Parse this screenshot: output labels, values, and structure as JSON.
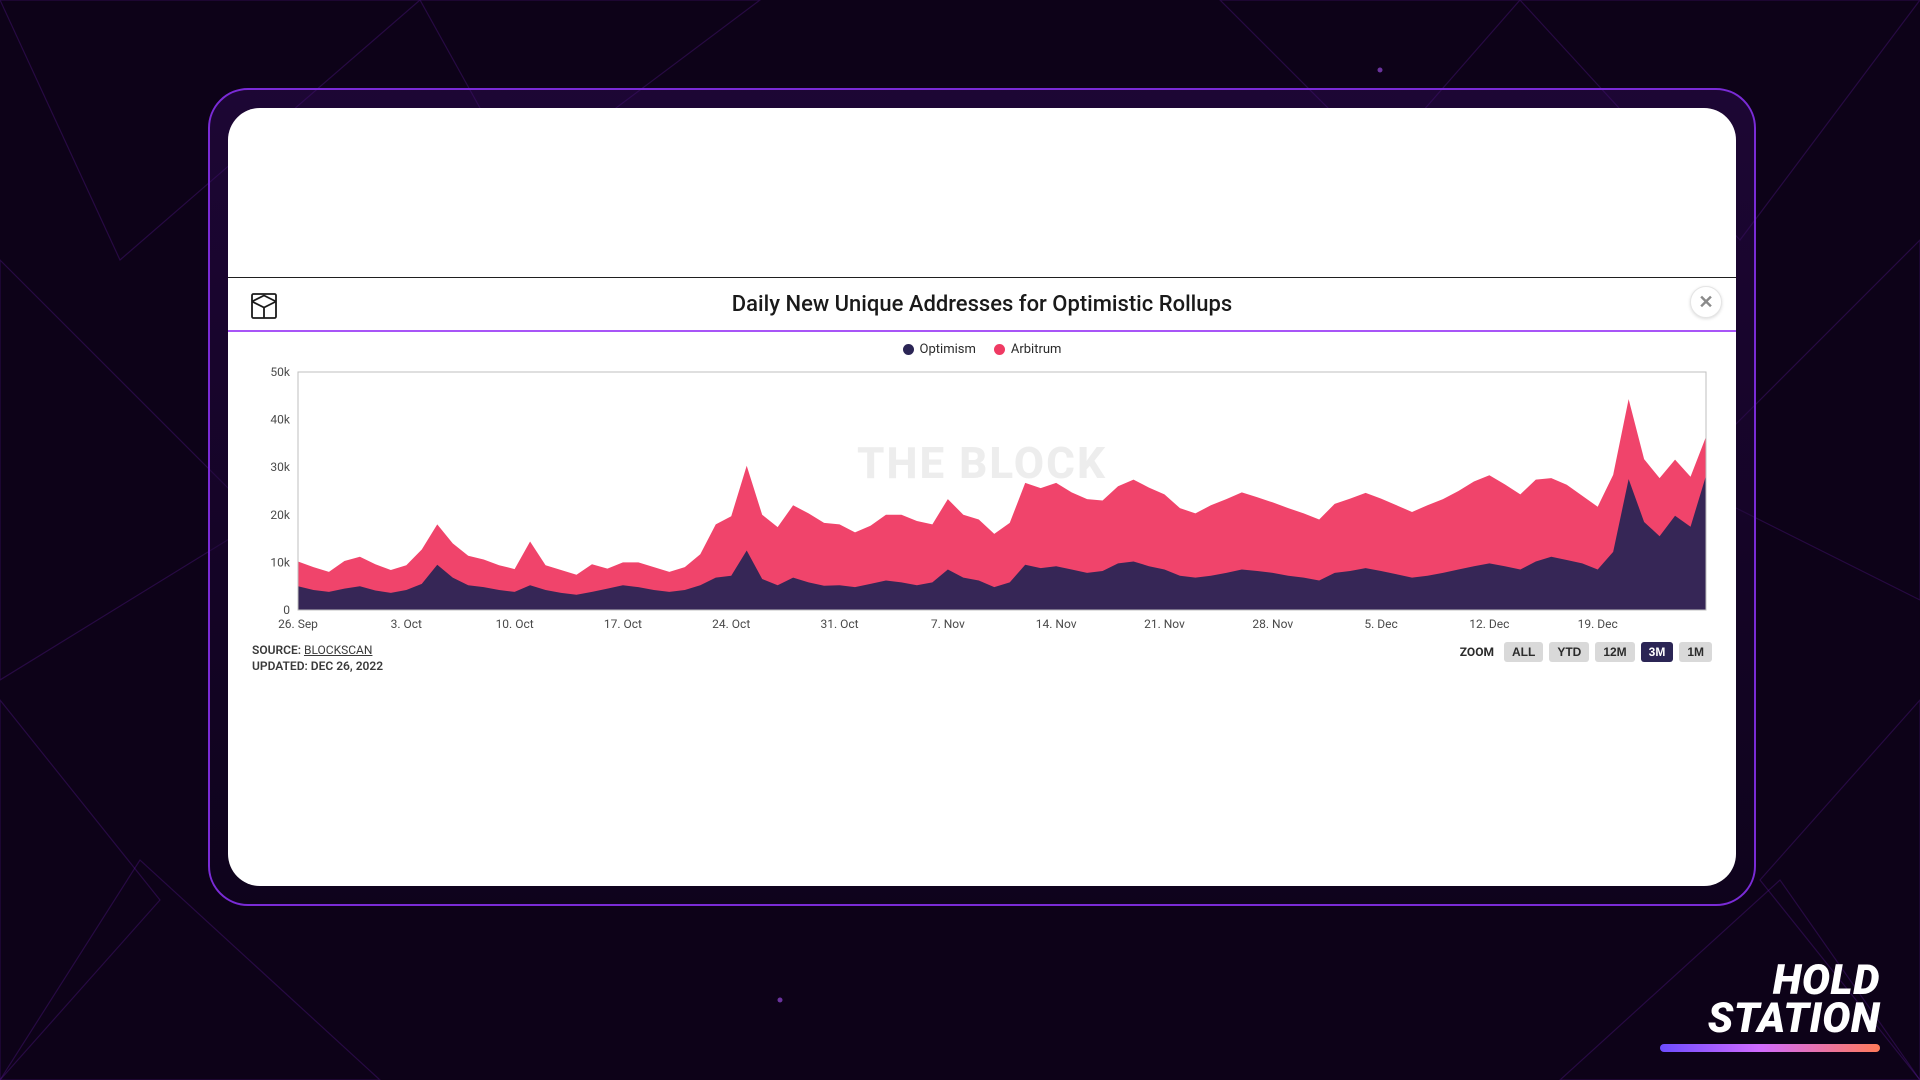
{
  "background": {
    "base_color": "#0d0218",
    "polyline_stroke": "#6b1fb3",
    "polyline_opacity": 0.35
  },
  "frame": {
    "border_color": "#7a2bd6",
    "inner_bg_top": "rgba(58,13,104,0.35)",
    "inner_bg_bottom": "rgba(16,4,32,0.55)"
  },
  "card": {
    "bg": "#ffffff",
    "divider": "#1f1f1f"
  },
  "header": {
    "title": "Daily New Unique Addresses for Optimistic Rollups",
    "accent_underline": "#a855f7",
    "close_icon_name": "close-icon"
  },
  "legend": {
    "items": [
      {
        "label": "Optimism",
        "color": "#2b2555"
      },
      {
        "label": "Arbitrum",
        "color": "#ef3a63"
      }
    ]
  },
  "watermark": "THE BLOCK",
  "chart": {
    "type": "area-stacked",
    "plot_bg": "#ffffff",
    "grid_color": "#e8e8e8",
    "axis_color": "#bfbfbf",
    "ylim": [
      0,
      50000
    ],
    "ytick_step": 10000,
    "ytick_labels": [
      "0",
      "10k",
      "20k",
      "30k",
      "40k",
      "50k"
    ],
    "yaxis_fontsize": 12,
    "xaxis_fontsize": 12,
    "series_colors": {
      "optimism": "#2b2555",
      "arbitrum": "#ef3a63"
    },
    "x_labels": [
      "26. Sep",
      "3. Oct",
      "10. Oct",
      "17. Oct",
      "24. Oct",
      "31. Oct",
      "7. Nov",
      "14. Nov",
      "21. Nov",
      "28. Nov",
      "5. Dec",
      "12. Dec",
      "19. Dec"
    ],
    "x_label_every_n_points": 7,
    "optimism": [
      5000,
      4200,
      3800,
      4500,
      5000,
      4100,
      3600,
      4200,
      5500,
      9500,
      6800,
      5200,
      4800,
      4200,
      3800,
      5200,
      4200,
      3600,
      3200,
      3800,
      4500,
      5200,
      4800,
      4200,
      3800,
      4200,
      5200,
      6800,
      7200,
      12500,
      6500,
      5200,
      6800,
      5800,
      5100,
      5200,
      4800,
      5500,
      6200,
      5800,
      5200,
      5800,
      8500,
      6800,
      6200,
      4800,
      5800,
      9500,
      8800,
      9200,
      8500,
      7800,
      8200,
      9800,
      10200,
      9200,
      8500,
      7200,
      6800,
      7200,
      7800,
      8500,
      8200,
      7800,
      7200,
      6800,
      6200,
      7800,
      8200,
      8800,
      8200,
      7500,
      6800,
      7200,
      7800,
      8500,
      9200,
      9800,
      9200,
      8500,
      10200,
      11200,
      10500,
      9800,
      8500,
      12200,
      27500,
      18500,
      15500,
      19800,
      17500,
      28200
    ],
    "arbitrum": [
      5200,
      4800,
      4200,
      5800,
      6200,
      5500,
      4800,
      5200,
      7200,
      8500,
      7200,
      6200,
      5800,
      5200,
      4800,
      9200,
      5200,
      4800,
      4200,
      5800,
      4200,
      4800,
      5200,
      4800,
      4200,
      4800,
      6500,
      11200,
      12500,
      17800,
      13500,
      12200,
      15200,
      14500,
      13200,
      12800,
      11500,
      12200,
      13800,
      14200,
      13500,
      12200,
      14800,
      13200,
      12800,
      11200,
      12500,
      17200,
      16800,
      17500,
      16200,
      15500,
      14800,
      16200,
      17200,
      16500,
      15800,
      14200,
      13500,
      14800,
      15500,
      16200,
      15500,
      14800,
      14200,
      13500,
      12800,
      14500,
      15200,
      15800,
      15200,
      14500,
      13800,
      14800,
      15500,
      16500,
      17800,
      18500,
      17200,
      15800,
      17200,
      16500,
      15800,
      14200,
      13200,
      16200,
      16800,
      13200,
      12200,
      11800,
      10500,
      8200
    ]
  },
  "footer": {
    "source_label": "SOURCE:",
    "source_link": "BLOCKSCAN",
    "updated_label": "UPDATED:",
    "updated_value": "DEC 26, 2022",
    "zoom_label": "ZOOM",
    "zoom_options": [
      "ALL",
      "YTD",
      "12M",
      "3M",
      "1M"
    ],
    "zoom_active": "3M"
  },
  "brand": {
    "line1": "HOLD",
    "line2": "STATION"
  }
}
